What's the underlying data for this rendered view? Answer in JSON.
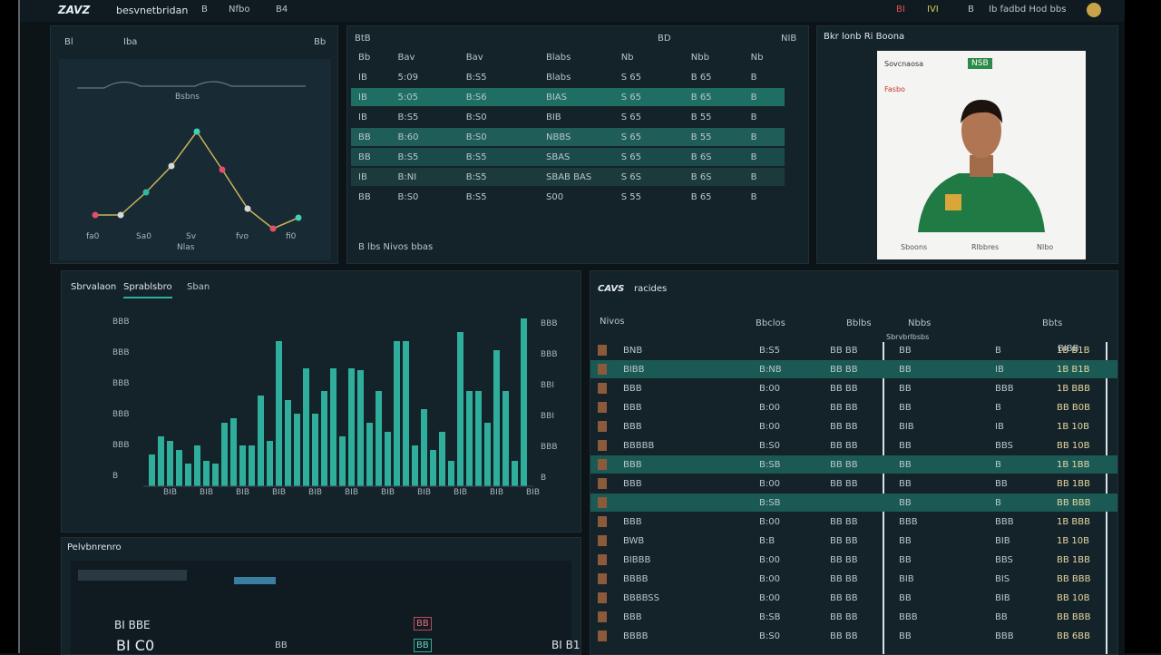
{
  "header": {
    "logo": "ZAVZ",
    "title": "besvnetbridan",
    "tabs": [
      "B",
      "Nfbo",
      "B4"
    ],
    "right": [
      "BI",
      "IVI",
      "B",
      "Ib fadbd Hod bbs"
    ]
  },
  "trend": {
    "tabs": [
      "Bl",
      "Iba",
      "Bb"
    ],
    "caption": "Bsbns",
    "x_labels": [
      "fa0",
      "Sa0",
      "Sv",
      "fvo",
      "fi0"
    ],
    "footer": "Nlas",
    "points": [
      28,
      28,
      53,
      82,
      120,
      78,
      35,
      13,
      25
    ],
    "colors": [
      "#e0506a",
      "#d8d8d8",
      "#2fb8a4",
      "#d8d8d8",
      "#3fd1b6",
      "#e0506a",
      "#d8d8d8",
      "#e0506a",
      "#3fd1b6"
    ]
  },
  "grid": {
    "title": "BtB",
    "tag": "BD",
    "action": "NIB",
    "header": [
      "Bb",
      "Bav",
      "Bav",
      "Blabs",
      "Nb",
      "Nbb",
      "Nb"
    ],
    "rows": [
      {
        "cells": [
          "IB",
          "5:09",
          "B:S5",
          "Blabs",
          "S 65",
          "B 65",
          "B"
        ]
      },
      {
        "cells": [
          "IB",
          "5:05",
          "B:S6",
          "BIAS",
          "S 65",
          "B 65",
          "B"
        ],
        "color": "#1e6e64"
      },
      {
        "cells": [
          "IB",
          "B:S5",
          "B:S0",
          "BIB",
          "S 65",
          "B 55",
          "B"
        ]
      },
      {
        "cells": [
          "BB",
          "B:60",
          "B:S0",
          "NBBS",
          "S 65",
          "B 55",
          "B"
        ],
        "color": "#1f5e58"
      },
      {
        "cells": [
          "BB",
          "B:S5",
          "B:S5",
          "SBAS",
          "S 65",
          "B 6S",
          "B"
        ],
        "color": "#1b4a4a"
      },
      {
        "cells": [
          "IB",
          "B:NI",
          "B:S5",
          "SBAB BAS",
          "S 6S",
          "B 6S",
          "B"
        ],
        "color": "#1c3a3c"
      },
      {
        "cells": [
          "BB",
          "B:S0",
          "B:S5",
          "S00",
          "S 55",
          "B 65",
          "B"
        ]
      }
    ],
    "footer": "B lbs Nivos bbas"
  },
  "profile": {
    "title": "Bkr lonb Ri Boona",
    "name": "Sovcnaosa",
    "sub": "Fasbo",
    "badge": "NSB",
    "footer": [
      "Sboons",
      "Rlbbres",
      "Nlbo"
    ]
  },
  "bars": {
    "tabs": [
      "Sbrvalaon",
      "Sprablsbro",
      "Sban"
    ],
    "left_labels": [
      "BBB",
      "BBB",
      "BBB",
      "BBB",
      "BBB",
      "B"
    ],
    "right_labels": [
      "BBB",
      "BBB",
      "BBI",
      "BBI",
      "BBB",
      "B"
    ],
    "x_labels": [
      "BIB",
      "BIB",
      "BIB",
      "BIB",
      "BIB",
      "BIB",
      "BIB",
      "BIB",
      "BIB",
      "BIB",
      "BIB"
    ],
    "color": "#2fae9c",
    "values": [
      35,
      55,
      50,
      40,
      25,
      45,
      28,
      25,
      70,
      75,
      45,
      45,
      100,
      50,
      160,
      95,
      80,
      130,
      80,
      105,
      130,
      55,
      130,
      128,
      70,
      105,
      60,
      160,
      160,
      45,
      85,
      40,
      60,
      28,
      170,
      105,
      105,
      70,
      150,
      105,
      28,
      185
    ]
  },
  "score": {
    "title": "Pelvbnrenro",
    "left": "BI BBE",
    "main": "BI C0",
    "mid": "BB",
    "right": "BI B1",
    "tiles": [
      "BB",
      "BB"
    ]
  },
  "roster": {
    "title": "racides",
    "logo": "CAVS",
    "sub": "Nivos",
    "sub_cols": [
      "Bbclos",
      "Bblbs",
      "Nbbs",
      "Bbts"
    ],
    "side_title": "Sbrvbrlbsbs",
    "side_tag": "BIBB",
    "rows": [
      [
        "BNB",
        "B:S5",
        "BB BB",
        "BB",
        "B",
        "1B B1B"
      ],
      [
        "BIBB",
        "B:NB",
        "BB BB",
        "BB",
        "IB",
        "1B B1B"
      ],
      [
        "BBB",
        "B:00",
        "BB BB",
        "BB",
        "BBB",
        "1B BBB"
      ],
      [
        "BBB",
        "B:00",
        "BB BB",
        "BB",
        "B",
        "BB B0B"
      ],
      [
        "BBB",
        "B:00",
        "BB BB",
        "BIB",
        "IB",
        "1B 10B"
      ],
      [
        "BBBBB",
        "B:S0",
        "BB BB",
        "BB",
        "BBS",
        "BB 10B"
      ],
      [
        "BBB",
        "B:SB",
        "BB BB",
        "BB",
        "B",
        "1B 1BB"
      ],
      [
        "BBB",
        "B:00",
        "BB BB",
        "BB",
        "BB",
        "BB 1BB"
      ],
      [
        "",
        "B:SB",
        "",
        "BB",
        "B",
        "BB BBB"
      ],
      [
        "BBB",
        "B:00",
        "BB BB",
        "BBB",
        "BBB",
        "1B BBB"
      ],
      [
        "BWB",
        "B:B",
        "BB BB",
        "BB",
        "BIB",
        "1B 10B"
      ],
      [
        "BIBBB",
        "B:00",
        "BB BB",
        "BB",
        "BBS",
        "BB 1BB"
      ],
      [
        "BBBB",
        "B:00",
        "BB BB",
        "BIB",
        "BIS",
        "BB BBB"
      ],
      [
        "BBBBSS",
        "B:00",
        "BB BB",
        "BB",
        "BIB",
        "BB 10B"
      ],
      [
        "BBB",
        "B:SB",
        "BB BB",
        "BBB",
        "BB",
        "BB BBB"
      ],
      [
        "BBBB",
        "B:S0",
        "BB BB",
        "BB",
        "BBB",
        "BB 6BB"
      ]
    ],
    "highlight": [
      1,
      6,
      8
    ]
  }
}
